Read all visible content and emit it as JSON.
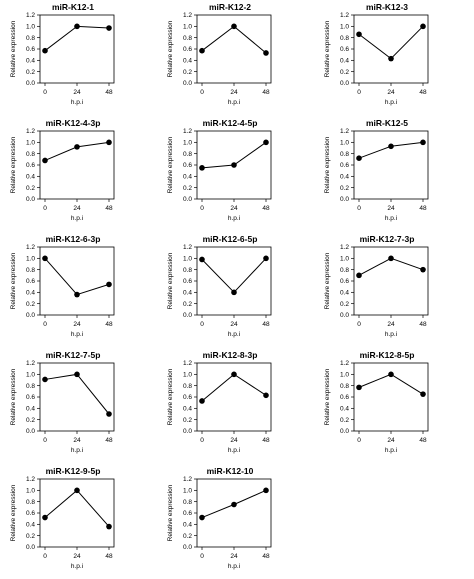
{
  "chart_data": [
    {
      "type": "line",
      "title": "miR-K12-1",
      "xlabel": "h.p.i",
      "ylabel": "Relative expression",
      "x": [
        "0",
        "24",
        "48"
      ],
      "values": [
        0.57,
        1.0,
        0.97
      ],
      "ylim": [
        0,
        1.2
      ],
      "yticks": [
        "0.0",
        "0.2",
        "0.4",
        "0.6",
        "0.8",
        "1.0",
        "1.2"
      ],
      "grid": false
    },
    {
      "type": "line",
      "title": "miR-K12-2",
      "xlabel": "h.p.i",
      "ylabel": "Relative expression",
      "x": [
        "0",
        "24",
        "48"
      ],
      "values": [
        0.57,
        1.0,
        0.53
      ],
      "ylim": [
        0,
        1.2
      ],
      "yticks": [
        "0.0",
        "0.2",
        "0.4",
        "0.6",
        "0.8",
        "1.0",
        "1.2"
      ],
      "grid": false
    },
    {
      "type": "line",
      "title": "miR-K12-3",
      "xlabel": "h.p.i",
      "ylabel": "Relative expression",
      "x": [
        "0",
        "24",
        "48"
      ],
      "values": [
        0.86,
        0.43,
        1.0
      ],
      "ylim": [
        0,
        1.2
      ],
      "yticks": [
        "0.0",
        "0.2",
        "0.4",
        "0.6",
        "0.8",
        "1.0",
        "1.2"
      ],
      "grid": false
    },
    {
      "type": "line",
      "title": "miR-K12-4-3p",
      "xlabel": "h.p.i",
      "ylabel": "Relative expression",
      "x": [
        "0",
        "24",
        "48"
      ],
      "values": [
        0.68,
        0.92,
        1.0
      ],
      "ylim": [
        0,
        1.2
      ],
      "yticks": [
        "0.0",
        "0.2",
        "0.4",
        "0.6",
        "0.8",
        "1.0",
        "1.2"
      ],
      "grid": false
    },
    {
      "type": "line",
      "title": "miR-K12-4-5p",
      "xlabel": "h.p.i",
      "ylabel": "Relative expression",
      "x": [
        "0",
        "24",
        "48"
      ],
      "values": [
        0.55,
        0.6,
        1.0
      ],
      "ylim": [
        0,
        1.2
      ],
      "yticks": [
        "0.0",
        "0.2",
        "0.4",
        "0.6",
        "0.8",
        "1.0",
        "1.2"
      ],
      "grid": false
    },
    {
      "type": "line",
      "title": "miR-K12-5",
      "xlabel": "h.p.i",
      "ylabel": "Relative expression",
      "x": [
        "0",
        "24",
        "48"
      ],
      "values": [
        0.72,
        0.93,
        1.0
      ],
      "ylim": [
        0,
        1.2
      ],
      "yticks": [
        "0.0",
        "0.2",
        "0.4",
        "0.6",
        "0.8",
        "1.0",
        "1.2"
      ],
      "grid": false
    },
    {
      "type": "line",
      "title": "miR-K12-6-3p",
      "xlabel": "h.p.i",
      "ylabel": "Relative expression",
      "x": [
        "0",
        "24",
        "48"
      ],
      "values": [
        1.0,
        0.36,
        0.54
      ],
      "ylim": [
        0,
        1.2
      ],
      "yticks": [
        "0.0",
        "0.2",
        "0.4",
        "0.6",
        "0.8",
        "1.0",
        "1.2"
      ],
      "grid": false
    },
    {
      "type": "line",
      "title": "miR-K12-6-5p",
      "xlabel": "h.p.i",
      "ylabel": "Relative expression",
      "x": [
        "0",
        "24",
        "48"
      ],
      "values": [
        0.98,
        0.4,
        1.0
      ],
      "ylim": [
        0,
        1.2
      ],
      "yticks": [
        "0.0",
        "0.2",
        "0.4",
        "0.6",
        "0.8",
        "1.0",
        "1.2"
      ],
      "grid": false
    },
    {
      "type": "line",
      "title": "miR-K12-7-3p",
      "xlabel": "h.p.i",
      "ylabel": "Relative expression",
      "x": [
        "0",
        "24",
        "48"
      ],
      "values": [
        0.7,
        1.0,
        0.8
      ],
      "ylim": [
        0,
        1.2
      ],
      "yticks": [
        "0.0",
        "0.2",
        "0.4",
        "0.6",
        "0.8",
        "1.0",
        "1.2"
      ],
      "grid": false
    },
    {
      "type": "line",
      "title": "miR-K12-7-5p",
      "xlabel": "h.p.i",
      "ylabel": "Relative expression",
      "x": [
        "0",
        "24",
        "48"
      ],
      "values": [
        0.91,
        1.0,
        0.3
      ],
      "ylim": [
        0,
        1.2
      ],
      "yticks": [
        "0.0",
        "0.2",
        "0.4",
        "0.6",
        "0.8",
        "1.0",
        "1.2"
      ],
      "grid": false
    },
    {
      "type": "line",
      "title": "miR-K12-8-3p",
      "xlabel": "h.p.i",
      "ylabel": "Relative expression",
      "x": [
        "0",
        "24",
        "48"
      ],
      "values": [
        0.53,
        1.0,
        0.63
      ],
      "ylim": [
        0,
        1.2
      ],
      "yticks": [
        "0.0",
        "0.2",
        "0.4",
        "0.6",
        "0.8",
        "1.0",
        "1.2"
      ],
      "grid": false
    },
    {
      "type": "line",
      "title": "miR-K12-8-5p",
      "xlabel": "h.p.i",
      "ylabel": "Relative expression",
      "x": [
        "0",
        "24",
        "48"
      ],
      "values": [
        0.77,
        1.0,
        0.65
      ],
      "ylim": [
        0,
        1.2
      ],
      "yticks": [
        "0.0",
        "0.2",
        "0.4",
        "0.6",
        "0.8",
        "1.0",
        "1.2"
      ],
      "grid": false
    },
    {
      "type": "line",
      "title": "miR-K12-9-5p",
      "xlabel": "h.p.i",
      "ylabel": "Relative expression",
      "x": [
        "0",
        "24",
        "48"
      ],
      "values": [
        0.52,
        1.0,
        0.36
      ],
      "ylim": [
        0,
        1.2
      ],
      "yticks": [
        "0.0",
        "0.2",
        "0.4",
        "0.6",
        "0.8",
        "1.0",
        "1.2"
      ],
      "grid": false
    },
    {
      "type": "line",
      "title": "miR-K12-10",
      "xlabel": "h.p.i",
      "ylabel": "Relative expression",
      "x": [
        "0",
        "24",
        "48"
      ],
      "values": [
        0.52,
        0.75,
        1.0
      ],
      "ylim": [
        0,
        1.2
      ],
      "yticks": [
        "0.0",
        "0.2",
        "0.4",
        "0.6",
        "0.8",
        "1.0",
        "1.2"
      ],
      "grid": false
    }
  ],
  "colors": {
    "line": "#000000",
    "marker": "#000000",
    "axis": "#000000",
    "background": "#ffffff"
  }
}
